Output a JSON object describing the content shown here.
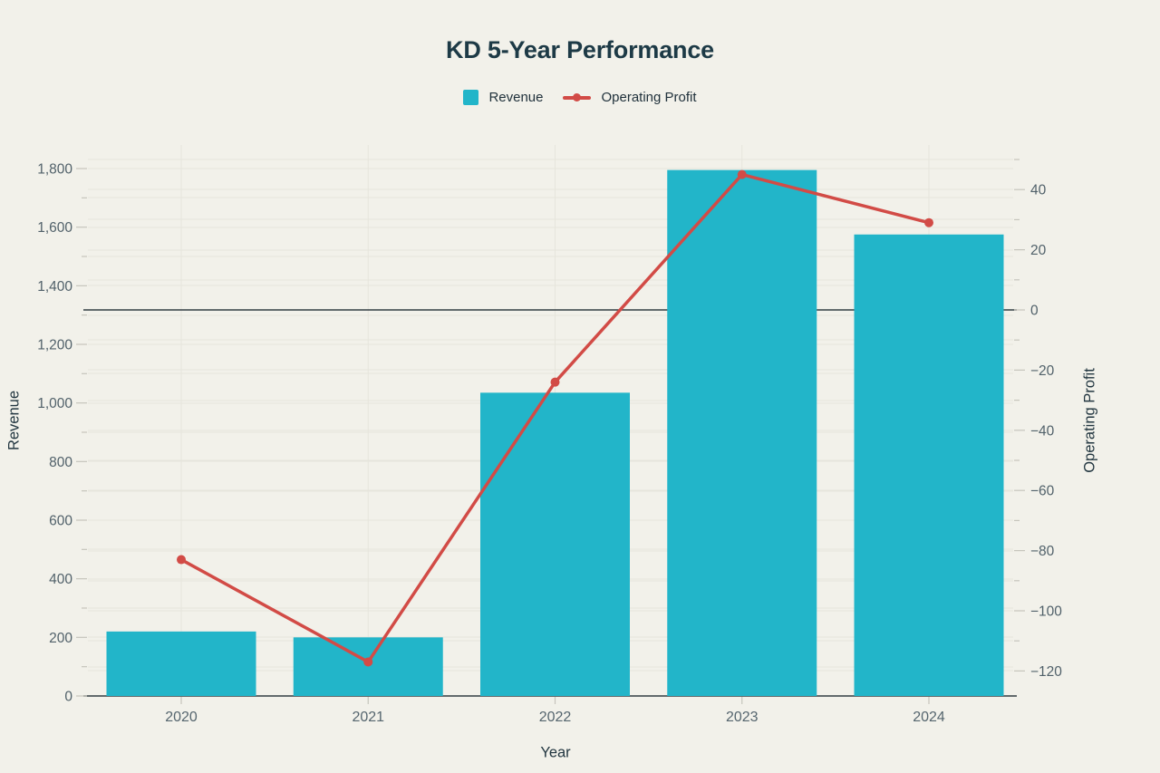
{
  "page": {
    "background": "#f2f1ea"
  },
  "header": {
    "title": "KD 5-Year Performance"
  },
  "legend": [
    {
      "label": "Revenue",
      "marker": "square",
      "color": "#22b5c9"
    },
    {
      "label": "Operating Profit",
      "marker": "line-dot",
      "color": "#d24b46"
    }
  ],
  "chart_data": {
    "type": "bar",
    "subtype": "bar+line dual axis",
    "title": "KD 5-Year Performance",
    "categories": [
      "2020",
      "2021",
      "2022",
      "2023",
      "2024"
    ],
    "series": [
      {
        "name": "Revenue",
        "type": "bar",
        "axis": "left",
        "color": "#22b5c9",
        "values": [
          220,
          200,
          1035,
          1795,
          1575
        ]
      },
      {
        "name": "Operating Profit",
        "type": "line",
        "axis": "right",
        "color": "#d24b46",
        "values": [
          -83,
          -117,
          -24,
          45,
          29
        ]
      }
    ],
    "xlabel": "Year",
    "left_axis": {
      "label": "Revenue",
      "min": 0,
      "max": 1800,
      "tick_step": 200,
      "minor_step": 100,
      "tick_labels": [
        "0",
        "200",
        "400",
        "600",
        "800",
        "1,000",
        "1,200",
        "1,400",
        "1,600",
        "1,800"
      ]
    },
    "right_axis": {
      "label": "Operating Profit",
      "min": -120,
      "max": 40,
      "tick_step": 20,
      "minor_step": 10,
      "tick_labels_top_down": [
        "40",
        "20",
        "0",
        "−20",
        "−40",
        "−60",
        "−80",
        "−100",
        "−120"
      ]
    },
    "grid": true,
    "legend_position": "top",
    "zero_line": true,
    "colors": {
      "background": "#f2f1ea",
      "bar": "#22b5c9",
      "line": "#d24b46",
      "axis_line": "#333d43",
      "gridline": "#e6e5dc",
      "tick": "#c6c5bc",
      "title_text": "#1d3a46",
      "tick_text": "#51616a"
    }
  }
}
